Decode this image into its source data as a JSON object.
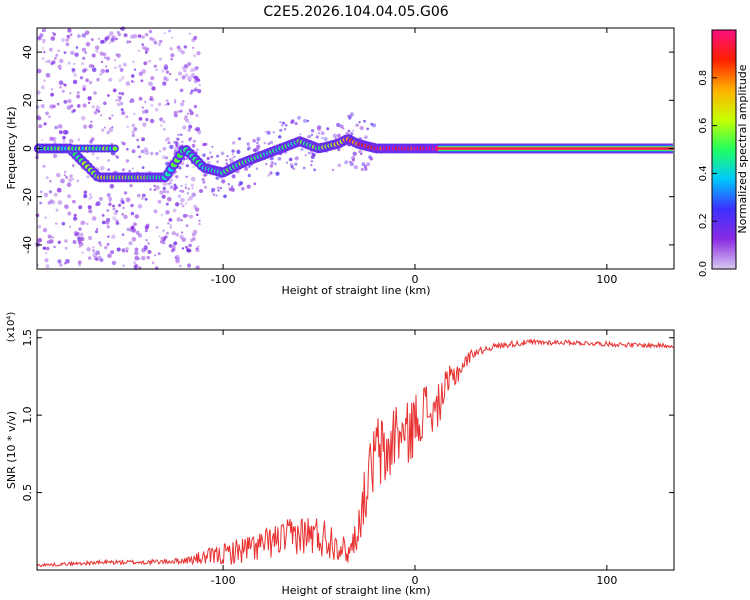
{
  "title": "C2E5.2026.104.04.05.G06",
  "chart_data": [
    {
      "type": "heatmap",
      "xlabel": "Height of straight line (km)",
      "ylabel": "Frequency (Hz)",
      "xlim": [
        -197,
        135
      ],
      "ylim": [
        -50,
        50
      ],
      "xticks": [
        -100,
        0,
        100
      ],
      "yticks": [
        40,
        20,
        0,
        -20,
        -40
      ],
      "colorbar": {
        "label": "Normalized spectral amplitude",
        "range": [
          0,
          1
        ],
        "ticks": [
          "0.0",
          "0.2",
          "0.4",
          "0.6",
          "0.8"
        ],
        "stops": [
          "#d8c8f0",
          "#8a2be2",
          "#3c30ff",
          "#00c8ff",
          "#20ff60",
          "#c8ff00",
          "#ffb000",
          "#ff2000",
          "#ff1080"
        ]
      },
      "ridge": {
        "x": [
          -197,
          -180,
          -165,
          -150,
          -140,
          -130,
          -120,
          -110,
          -100,
          -90,
          -80,
          -70,
          -60,
          -50,
          -40,
          -35,
          -30,
          -25,
          -20,
          -10,
          0,
          10,
          20,
          40,
          60,
          80,
          100,
          120,
          135
        ],
        "freq": [
          0,
          0,
          -12,
          -12,
          -12,
          -12,
          0,
          -8,
          -10,
          -6,
          -3,
          0,
          3,
          0,
          2,
          4,
          2,
          1,
          0,
          0,
          0,
          0,
          0,
          0,
          0,
          0,
          0,
          0,
          0
        ],
        "amp": [
          0.45,
          0.5,
          0.55,
          0.6,
          0.55,
          0.45,
          0.5,
          0.45,
          0.5,
          0.5,
          0.5,
          0.45,
          0.5,
          0.55,
          0.6,
          0.8,
          0.75,
          0.85,
          0.9,
          0.95,
          0.95,
          0.95,
          0.95,
          0.95,
          0.95,
          0.95,
          0.95,
          0.95,
          0.95
        ]
      }
    },
    {
      "type": "line",
      "xlabel": "Height of straight line (km)",
      "ylabel": "SNR (10 * v/v)",
      "yscale_label": "(x10⁴)",
      "xlim": [
        -197,
        135
      ],
      "ylim": [
        0,
        1.55
      ],
      "xticks": [
        -100,
        0,
        100
      ],
      "yticks": [
        0.5,
        1.0,
        1.5
      ],
      "series": [
        {
          "name": "SNR",
          "color": "#e83030",
          "x": [
            -197,
            -180,
            -160,
            -140,
            -120,
            -110,
            -100,
            -90,
            -80,
            -70,
            -60,
            -50,
            -40,
            -35,
            -30,
            -25,
            -20,
            -15,
            -10,
            -5,
            0,
            5,
            10,
            15,
            20,
            25,
            30,
            40,
            50,
            60,
            80,
            100,
            120,
            135
          ],
          "y": [
            0.03,
            0.04,
            0.05,
            0.05,
            0.06,
            0.08,
            0.1,
            0.13,
            0.16,
            0.2,
            0.23,
            0.22,
            0.18,
            0.1,
            0.25,
            0.55,
            0.78,
            0.72,
            0.9,
            0.85,
            0.95,
            1.05,
            1.0,
            1.15,
            1.25,
            1.32,
            1.4,
            1.44,
            1.46,
            1.47,
            1.47,
            1.46,
            1.45,
            1.45
          ],
          "noise": [
            0.01,
            0.01,
            0.015,
            0.015,
            0.02,
            0.05,
            0.07,
            0.09,
            0.1,
            0.11,
            0.13,
            0.14,
            0.12,
            0.06,
            0.12,
            0.2,
            0.25,
            0.25,
            0.22,
            0.22,
            0.2,
            0.18,
            0.15,
            0.12,
            0.1,
            0.06,
            0.03,
            0.02,
            0.02,
            0.02,
            0.015,
            0.015,
            0.015,
            0.015
          ]
        }
      ]
    }
  ]
}
